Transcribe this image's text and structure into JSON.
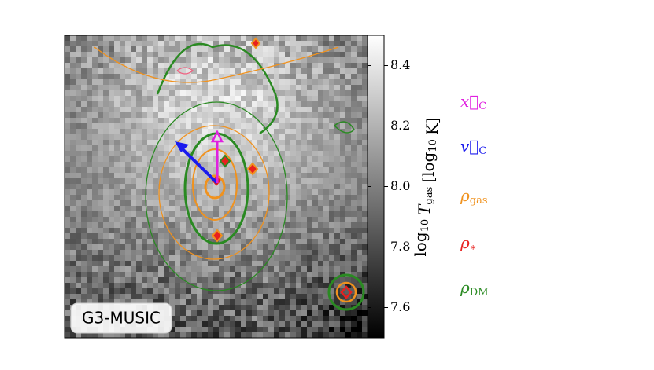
{
  "chart_data": {
    "type": "heatmap",
    "panel_label": "G3-MUSIC",
    "colorbar": {
      "clim": [
        7.5,
        8.5
      ],
      "ticks": [
        7.6,
        7.8,
        {
          "value": 8,
          "label": "8.0"
        },
        8.2,
        8.4
      ],
      "label": [
        {
          "text": "log",
          "sub": "10"
        },
        {
          "text": "T",
          "sub": "gas"
        },
        {
          "text": "[log",
          "sub": "10"
        },
        {
          "text": "K]"
        }
      ]
    },
    "legend": [
      {
        "symbol": "x⃗",
        "sub": "C",
        "color": "#e020e0"
      },
      {
        "symbol": "v⃗",
        "sub": "C",
        "color": "#1a1aee"
      },
      {
        "symbol": "ρ",
        "sub": "gas",
        "color": "#f0921e"
      },
      {
        "symbol": "ρ",
        "sub": "∗",
        "color": "#e8201e"
      },
      {
        "symbol": "ρ",
        "sub": "DM",
        "color": "#2a8a22"
      }
    ]
  }
}
